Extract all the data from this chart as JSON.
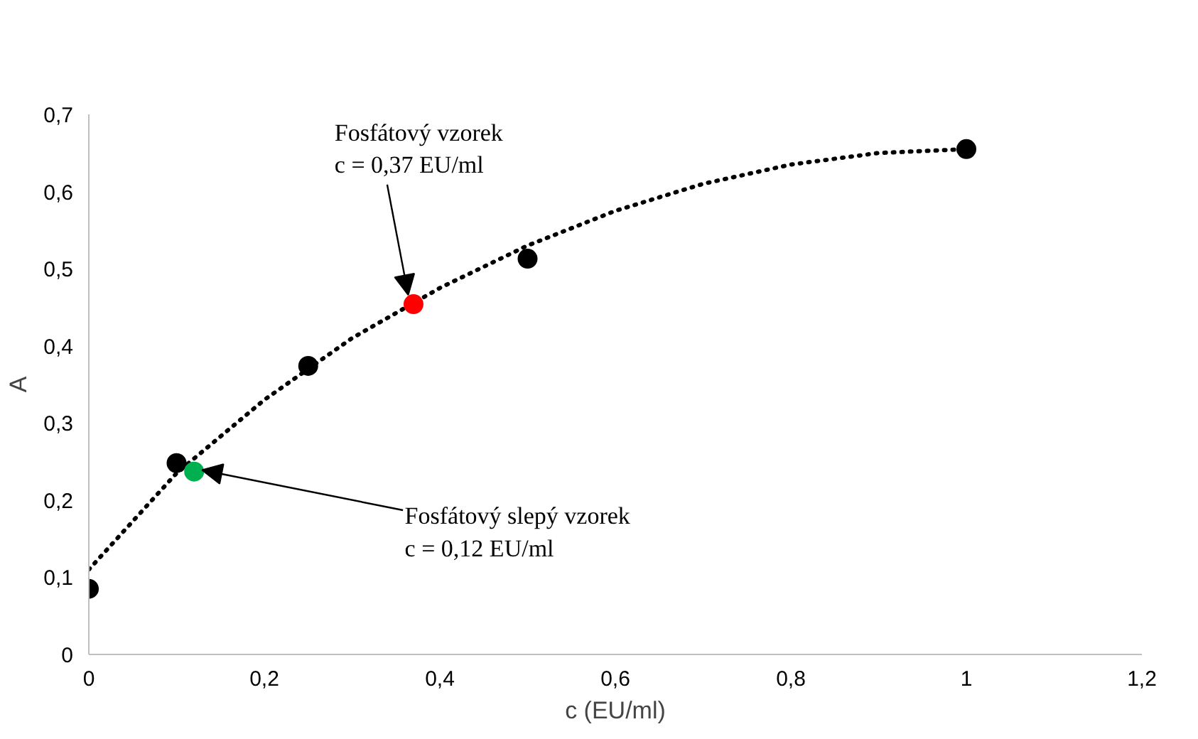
{
  "chart_data": {
    "type": "scatter",
    "xlabel": "c (EU/ml)",
    "ylabel": "A",
    "xlim": [
      0,
      1.2
    ],
    "ylim": [
      0,
      0.7
    ],
    "xticks": [
      0,
      {
        "value": 0.2,
        "label": "0,2"
      },
      {
        "value": 0.4,
        "label": "0,4"
      },
      {
        "value": 0.6,
        "label": "0,6"
      },
      {
        "value": 0.8,
        "label": "0,8"
      },
      1,
      {
        "value": 1.2,
        "label": "1,2"
      }
    ],
    "yticks": [
      0,
      {
        "value": 0.1,
        "label": "0,1"
      },
      {
        "value": 0.2,
        "label": "0,2"
      },
      {
        "value": 0.3,
        "label": "0,3"
      },
      {
        "value": 0.4,
        "label": "0,4"
      },
      {
        "value": 0.5,
        "label": "0,5"
      },
      {
        "value": 0.6,
        "label": "0,6"
      },
      {
        "value": 0.7,
        "label": "0,7"
      }
    ],
    "grid": false,
    "marker": "circle",
    "series": [
      {
        "type": "line",
        "line_style": "dotted",
        "marker": "none",
        "color": "#000000",
        "x": [
          0,
          0.1,
          0.2,
          0.3,
          0.4,
          0.5,
          0.6,
          0.7,
          0.8,
          0.9,
          1.0
        ],
        "values": [
          0.11,
          0.235,
          0.33,
          0.41,
          0.475,
          0.53,
          0.575,
          0.61,
          0.635,
          0.65,
          0.655
        ]
      },
      {
        "color": "#000000",
        "x": [
          0,
          0.1,
          0.25,
          0.5,
          1
        ],
        "values": [
          0.085,
          0.248,
          0.374,
          0.513,
          0.655
        ]
      },
      {
        "color": "#ff0000",
        "x": [
          0.37
        ],
        "values": [
          0.454
        ]
      },
      {
        "color": "#00b050",
        "x": [
          0.12
        ],
        "values": [
          0.237
        ]
      }
    ],
    "annotations": [
      {
        "text": "Fosfátový vzorek\nc = 0,37 EU/ml",
        "x": 0.37,
        "y": 0.454
      },
      {
        "text": "Fosfátový slepý vzorek\nc = 0,12 EU/ml",
        "x": 0.12,
        "y": 0.237
      }
    ]
  }
}
